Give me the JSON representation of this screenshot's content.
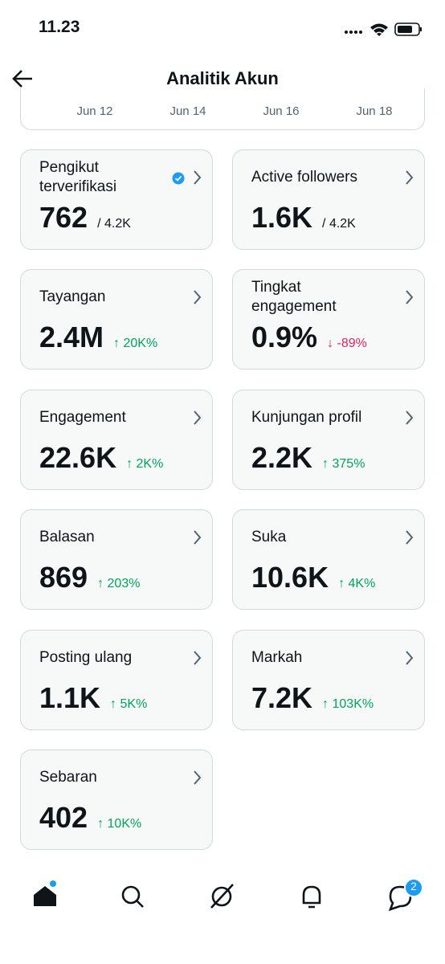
{
  "status": {
    "time": "11.23"
  },
  "header": {
    "title": "Analitik Akun"
  },
  "chart_axis": {
    "dates": [
      "Jun 12",
      "Jun 14",
      "Jun 16",
      "Jun 18"
    ]
  },
  "cards": [
    {
      "label": [
        "Pengikut",
        "terverifikasi"
      ],
      "value": "762",
      "sub": "/ 4.2K",
      "sub_color": "#0f1419",
      "verified": true
    },
    {
      "label": [
        "Active followers"
      ],
      "value": "1.6K",
      "sub": "/ 4.2K",
      "sub_color": "#0f1419"
    },
    {
      "label": [
        "Tayangan"
      ],
      "value": "2.4M",
      "sub": "↑ 20K%",
      "sub_color": "#00a35a"
    },
    {
      "label": [
        "Tingkat",
        "engagement"
      ],
      "value": "0.9%",
      "sub": "↓ -89%",
      "sub_color": "#e0245e"
    },
    {
      "label": [
        "Engagement"
      ],
      "value": "22.6K",
      "sub": "↑ 2K%",
      "sub_color": "#00a35a"
    },
    {
      "label": [
        "Kunjungan profil"
      ],
      "value": "2.2K",
      "sub": "↑ 375%",
      "sub_color": "#00a35a"
    },
    {
      "label": [
        "Balasan"
      ],
      "value": "869",
      "sub": "↑ 203%",
      "sub_color": "#00a35a"
    },
    {
      "label": [
        "Suka"
      ],
      "value": "10.6K",
      "sub": "↑ 4K%",
      "sub_color": "#00a35a"
    },
    {
      "label": [
        "Posting ulang"
      ],
      "value": "1.1K",
      "sub": "↑ 5K%",
      "sub_color": "#00a35a"
    },
    {
      "label": [
        "Markah"
      ],
      "value": "7.2K",
      "sub": "↑ 103K%",
      "sub_color": "#00a35a"
    },
    {
      "label": [
        "Sebaran"
      ],
      "value": "402",
      "sub": "↑ 10K%",
      "sub_color": "#00a35a"
    }
  ],
  "nav": {
    "message_badge": "2"
  }
}
